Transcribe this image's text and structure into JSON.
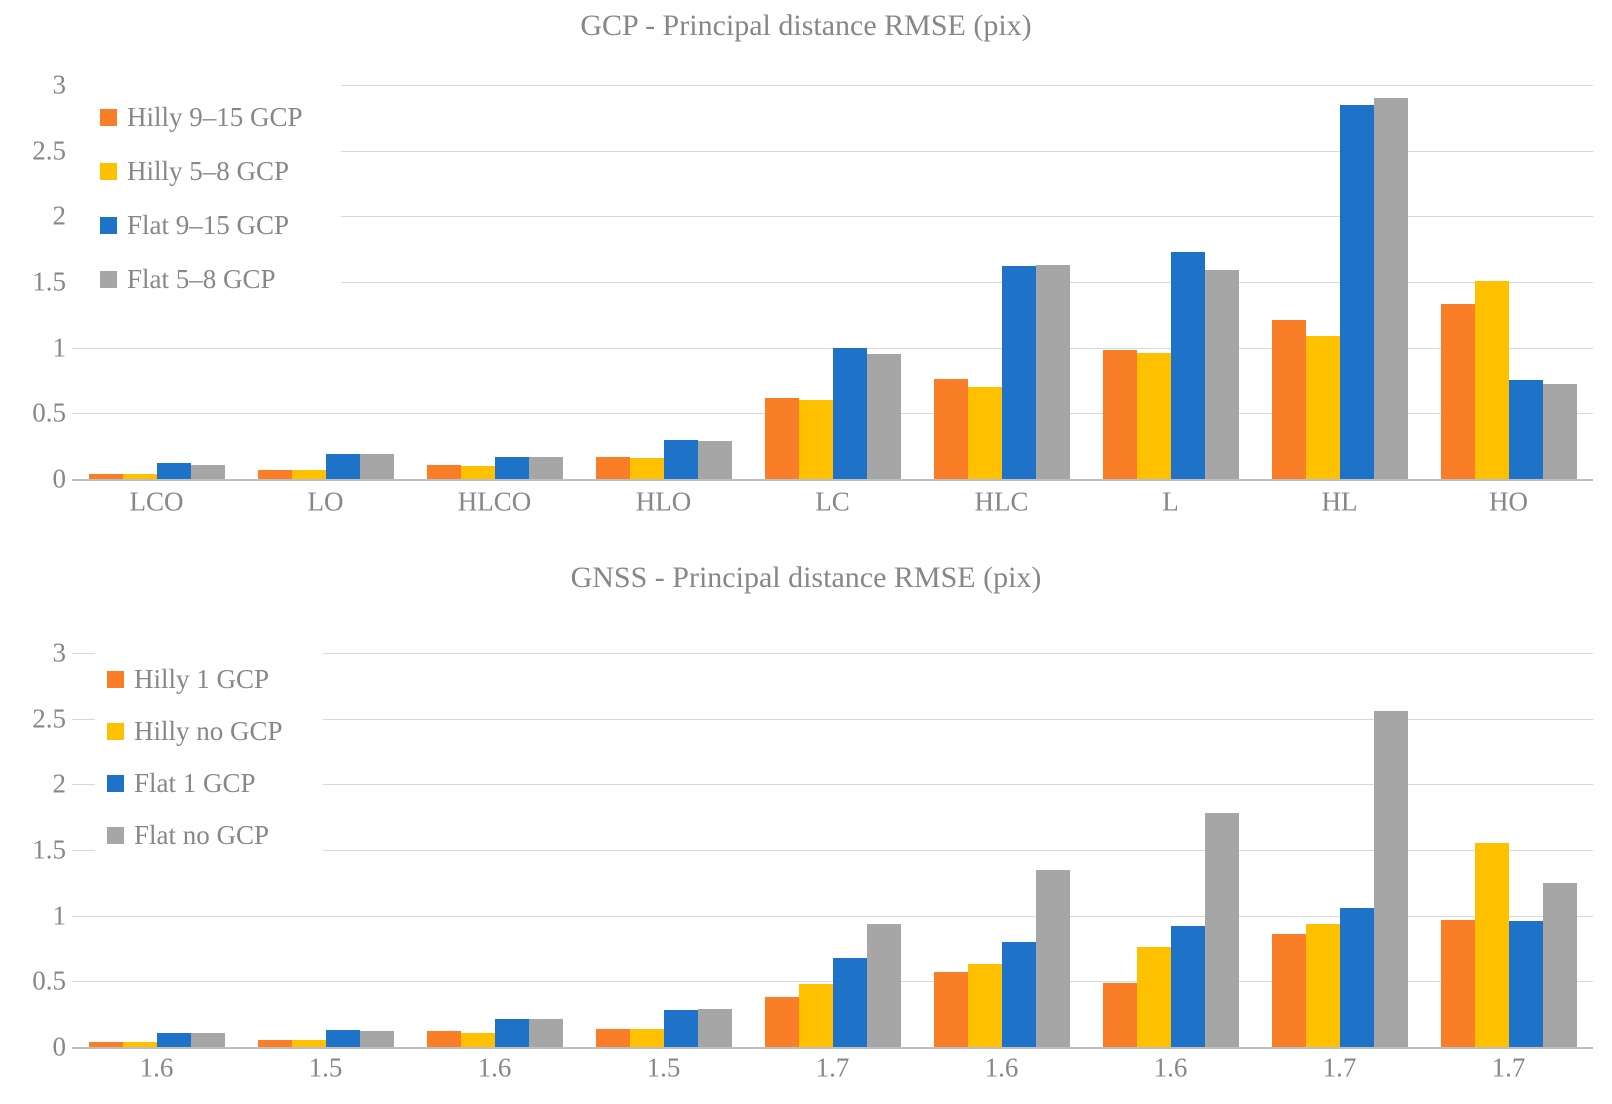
{
  "style": {
    "background": "#FFFFFF",
    "text_color": "#878787",
    "gridline_color": "#D9D9D9",
    "axis_line_color": "#BFBFBF",
    "accent_orange": "#F97E27",
    "accent_yellow": "#FFC000",
    "accent_blue": "#1E73C8",
    "accent_gray": "#A6A6A6"
  },
  "chart_data": [
    {
      "type": "bar",
      "title": "GCP - Principal distance RMSE (pix)",
      "categories": [
        "LCO",
        "LO",
        "HLCO",
        "HLO",
        "LC",
        "HLC",
        "L",
        "HL",
        "HO"
      ],
      "series": [
        {
          "name": "Hilly 9–15 GCP",
          "color": "#F97E27",
          "values": [
            0.04,
            0.07,
            0.11,
            0.17,
            0.62,
            0.76,
            0.98,
            1.21,
            1.33
          ]
        },
        {
          "name": "Hilly 5–8 GCP",
          "color": "#FFC000",
          "values": [
            0.04,
            0.07,
            0.1,
            0.16,
            0.6,
            0.7,
            0.96,
            1.09,
            1.51
          ]
        },
        {
          "name": "Flat 9–15 GCP",
          "color": "#1E73C8",
          "values": [
            0.12,
            0.19,
            0.17,
            0.3,
            1.0,
            1.62,
            1.73,
            2.85,
            0.75
          ]
        },
        {
          "name": "Flat 5–8 GCP",
          "color": "#A6A6A6",
          "values": [
            0.11,
            0.19,
            0.17,
            0.29,
            0.95,
            1.63,
            1.59,
            2.9,
            0.72
          ]
        }
      ],
      "xlabel": "",
      "ylabel": "",
      "ylim": [
        0,
        3
      ],
      "yticks": [
        0,
        0.5,
        1,
        1.5,
        2,
        2.5,
        3
      ],
      "ytick_labels": [
        "0",
        "0.5",
        "1",
        "1.5",
        "2",
        "2.5",
        "3"
      ],
      "grid": "horizontal",
      "legend_position": "upper-left-overlay"
    },
    {
      "type": "bar",
      "title": "GNSS - Principal distance RMSE (pix)",
      "categories": [
        "1.6",
        "1.5",
        "1.6",
        "1.5",
        "1.7",
        "1.6",
        "1.6",
        "1.7",
        "1.7"
      ],
      "series": [
        {
          "name": "Hilly 1 GCP",
          "color": "#F97E27",
          "values": [
            0.04,
            0.05,
            0.12,
            0.14,
            0.38,
            0.57,
            0.49,
            0.86,
            0.97
          ]
        },
        {
          "name": "Hilly no GCP",
          "color": "#FFC000",
          "values": [
            0.04,
            0.05,
            0.11,
            0.14,
            0.48,
            0.63,
            0.76,
            0.94,
            1.55
          ]
        },
        {
          "name": "Flat 1 GCP",
          "color": "#1E73C8",
          "values": [
            0.11,
            0.13,
            0.21,
            0.28,
            0.68,
            0.8,
            0.92,
            1.06,
            0.96
          ]
        },
        {
          "name": "Flat no GCP",
          "color": "#A6A6A6",
          "values": [
            0.11,
            0.12,
            0.21,
            0.29,
            0.94,
            1.35,
            1.78,
            2.56,
            1.25
          ]
        }
      ],
      "xlabel": "",
      "ylabel": "",
      "ylim": [
        0,
        3
      ],
      "yticks": [
        0,
        0.5,
        1,
        1.5,
        2,
        2.5,
        3
      ],
      "ytick_labels": [
        "0",
        "0.5",
        "1",
        "1.5",
        "2",
        "2.5",
        "3"
      ],
      "grid": "horizontal",
      "legend_position": "upper-left-overlay"
    }
  ]
}
